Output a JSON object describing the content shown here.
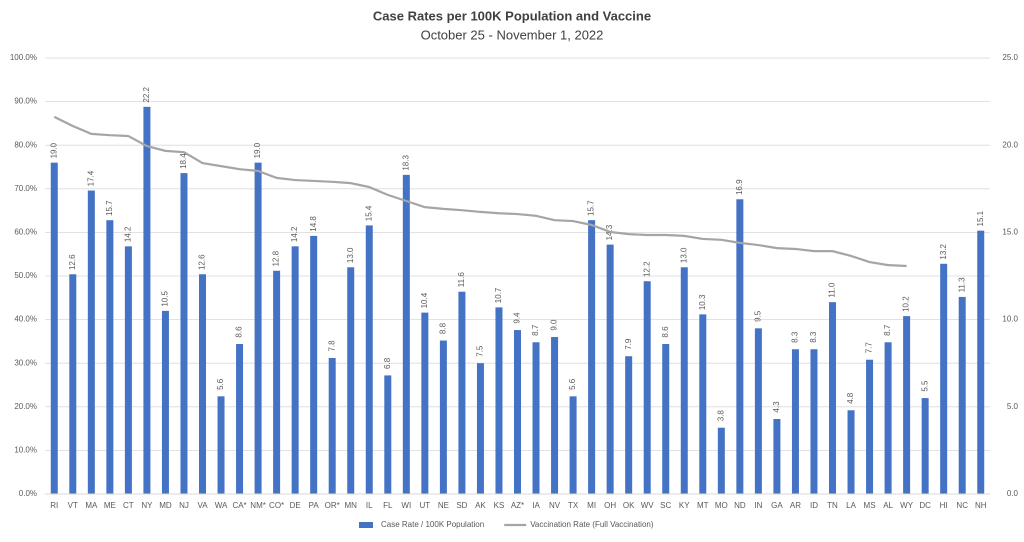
{
  "chart_data": {
    "type": "bar",
    "title": "Case Rates per 100K Population and Vaccine",
    "subtitle": "October 25 - November 1, 2022",
    "categories": [
      "RI",
      "VT",
      "MA",
      "ME",
      "CT",
      "NY",
      "MD",
      "NJ",
      "VA",
      "WA",
      "CA*",
      "NM*",
      "CO*",
      "DE",
      "PA",
      "OR*",
      "MN",
      "IL",
      "FL",
      "WI",
      "UT",
      "NE",
      "SD",
      "AK",
      "KS",
      "AZ*",
      "IA",
      "NV",
      "TX",
      "MI",
      "OH",
      "OK",
      "WV",
      "SC",
      "KY",
      "MT",
      "MO",
      "ND",
      "IN",
      "GA",
      "AR",
      "ID",
      "TN",
      "LA",
      "MS",
      "AL",
      "WY",
      "DC",
      "HI",
      "NC",
      "NH"
    ],
    "series": [
      {
        "name": "Case Rate / 100K Population",
        "color": "#4472c4",
        "axis": "y2",
        "values": [
          19.0,
          12.6,
          17.4,
          15.7,
          14.2,
          22.2,
          10.5,
          18.4,
          12.6,
          5.6,
          8.6,
          19.0,
          12.8,
          14.2,
          14.8,
          7.8,
          13.0,
          15.4,
          6.8,
          18.3,
          10.4,
          8.8,
          11.6,
          7.5,
          10.7,
          9.4,
          8.7,
          9.0,
          5.6,
          15.7,
          14.3,
          7.9,
          12.2,
          8.6,
          13.0,
          10.3,
          3.8,
          16.9,
          9.5,
          4.3,
          8.3,
          8.3,
          11.0,
          4.8,
          7.7,
          8.7,
          10.2,
          5.5,
          13.2,
          11.3,
          15.1
        ],
        "value_labels": [
          "19.0",
          "12.6",
          "17.4",
          "15.7",
          "14.2",
          "22.2",
          "10.5",
          "18.4",
          "12.6",
          "5.6",
          "8.6",
          "19.0",
          "12.8",
          "14.2",
          "14.8",
          "7.8",
          "13.0",
          "15.4",
          "6.8",
          "18.3",
          "10.4",
          "8.8",
          "11.6",
          "7.5",
          "10.7",
          "9.4",
          "8.7",
          "9.0",
          "5.6",
          "15.7",
          "14.3",
          "7.9",
          "12.2",
          "8.6",
          "13.0",
          "10.3",
          "3.8",
          "16.9",
          "9.5",
          "4.3",
          "8.3",
          "8.3",
          "11.0",
          "4.8",
          "7.7",
          "8.7",
          "10.2",
          "5.5",
          "13.2",
          "11.3",
          "15.1"
        ]
      },
      {
        "name": "Vaccination Rate (Full Vaccination)",
        "color": "#a5a5a5",
        "axis": "y",
        "type": "line",
        "values": [
          86.5,
          84.4,
          82.6,
          82.3,
          82.1,
          79.8,
          78.7,
          78.4,
          75.9,
          75.2,
          74.5,
          74.1,
          72.5,
          72.0,
          71.8,
          71.6,
          71.3,
          70.4,
          68.6,
          67.2,
          65.8,
          65.4,
          65.1,
          64.7,
          64.4,
          64.2,
          63.8,
          62.8,
          62.6,
          61.7,
          60.1,
          59.6,
          59.4,
          59.4,
          59.2,
          58.5,
          58.3,
          57.6,
          57.1,
          56.4,
          56.2,
          55.7,
          55.7,
          54.6,
          53.2,
          52.5,
          52.3,
          null,
          null,
          null,
          null
        ]
      }
    ],
    "ylim": [
      0,
      100
    ],
    "yticks": [
      {
        "value": 0,
        "label": "0.0%"
      },
      {
        "value": 10,
        "label": "10.0%"
      },
      {
        "value": 20,
        "label": "20.0%"
      },
      {
        "value": 30,
        "label": "30.0%"
      },
      {
        "value": 40,
        "label": "40.0%"
      },
      {
        "value": 50,
        "label": "50.0%"
      },
      {
        "value": 60,
        "label": "60.0%"
      },
      {
        "value": 70,
        "label": "70.0%"
      },
      {
        "value": 80,
        "label": "80.0%"
      },
      {
        "value": 90,
        "label": "90.0%"
      },
      {
        "value": 100,
        "label": "100.0%"
      }
    ],
    "y2lim": [
      0,
      25
    ],
    "y2ticks": [
      {
        "value": 0,
        "label": "0.0"
      },
      {
        "value": 5,
        "label": "5.0"
      },
      {
        "value": 10,
        "label": "10.0"
      },
      {
        "value": 15,
        "label": "15.0"
      },
      {
        "value": 20,
        "label": "20.0"
      },
      {
        "value": 25,
        "label": "25.0"
      }
    ],
    "grid": true,
    "legend": "bottom"
  }
}
